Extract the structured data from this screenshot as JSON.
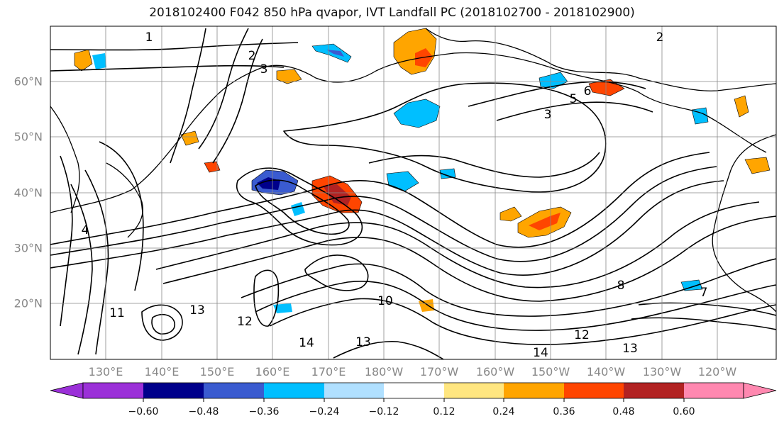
{
  "title": "2018102400 F042 850 hPa qvapor, IVT Landfall PC (2018102700 - 2018102900)",
  "lat_labels": [
    "60°N",
    "50°N",
    "40°N",
    "30°N",
    "20°N"
  ],
  "lon_labels": [
    "130°E",
    "140°E",
    "150°E",
    "160°E",
    "170°E",
    "180°W",
    "170°W",
    "160°W",
    "150°W",
    "140°W",
    "130°W",
    "120°W"
  ],
  "contour_labels": [
    "1",
    "2",
    "3",
    "2",
    "3",
    "4",
    "5",
    "6",
    "7",
    "8",
    "10",
    "11",
    "12",
    "13",
    "14",
    "14",
    "13",
    "12",
    "13"
  ],
  "colorbar": {
    "tick_labels": [
      "−0.60",
      "−0.48",
      "−0.36",
      "−0.24",
      "−0.12",
      "0.12",
      "0.24",
      "0.36",
      "0.48",
      "0.60"
    ],
    "colors": [
      "#9b30d8",
      "#00008b",
      "#3a5bd0",
      "#00bfff",
      "#b0e0ff",
      "#ffffff",
      "#ffe680",
      "#ffa500",
      "#ff4500",
      "#b22222",
      "#ff88b0"
    ]
  },
  "colors": {
    "coastline": "#000000",
    "contour": "#000000",
    "grid": "#888888"
  }
}
